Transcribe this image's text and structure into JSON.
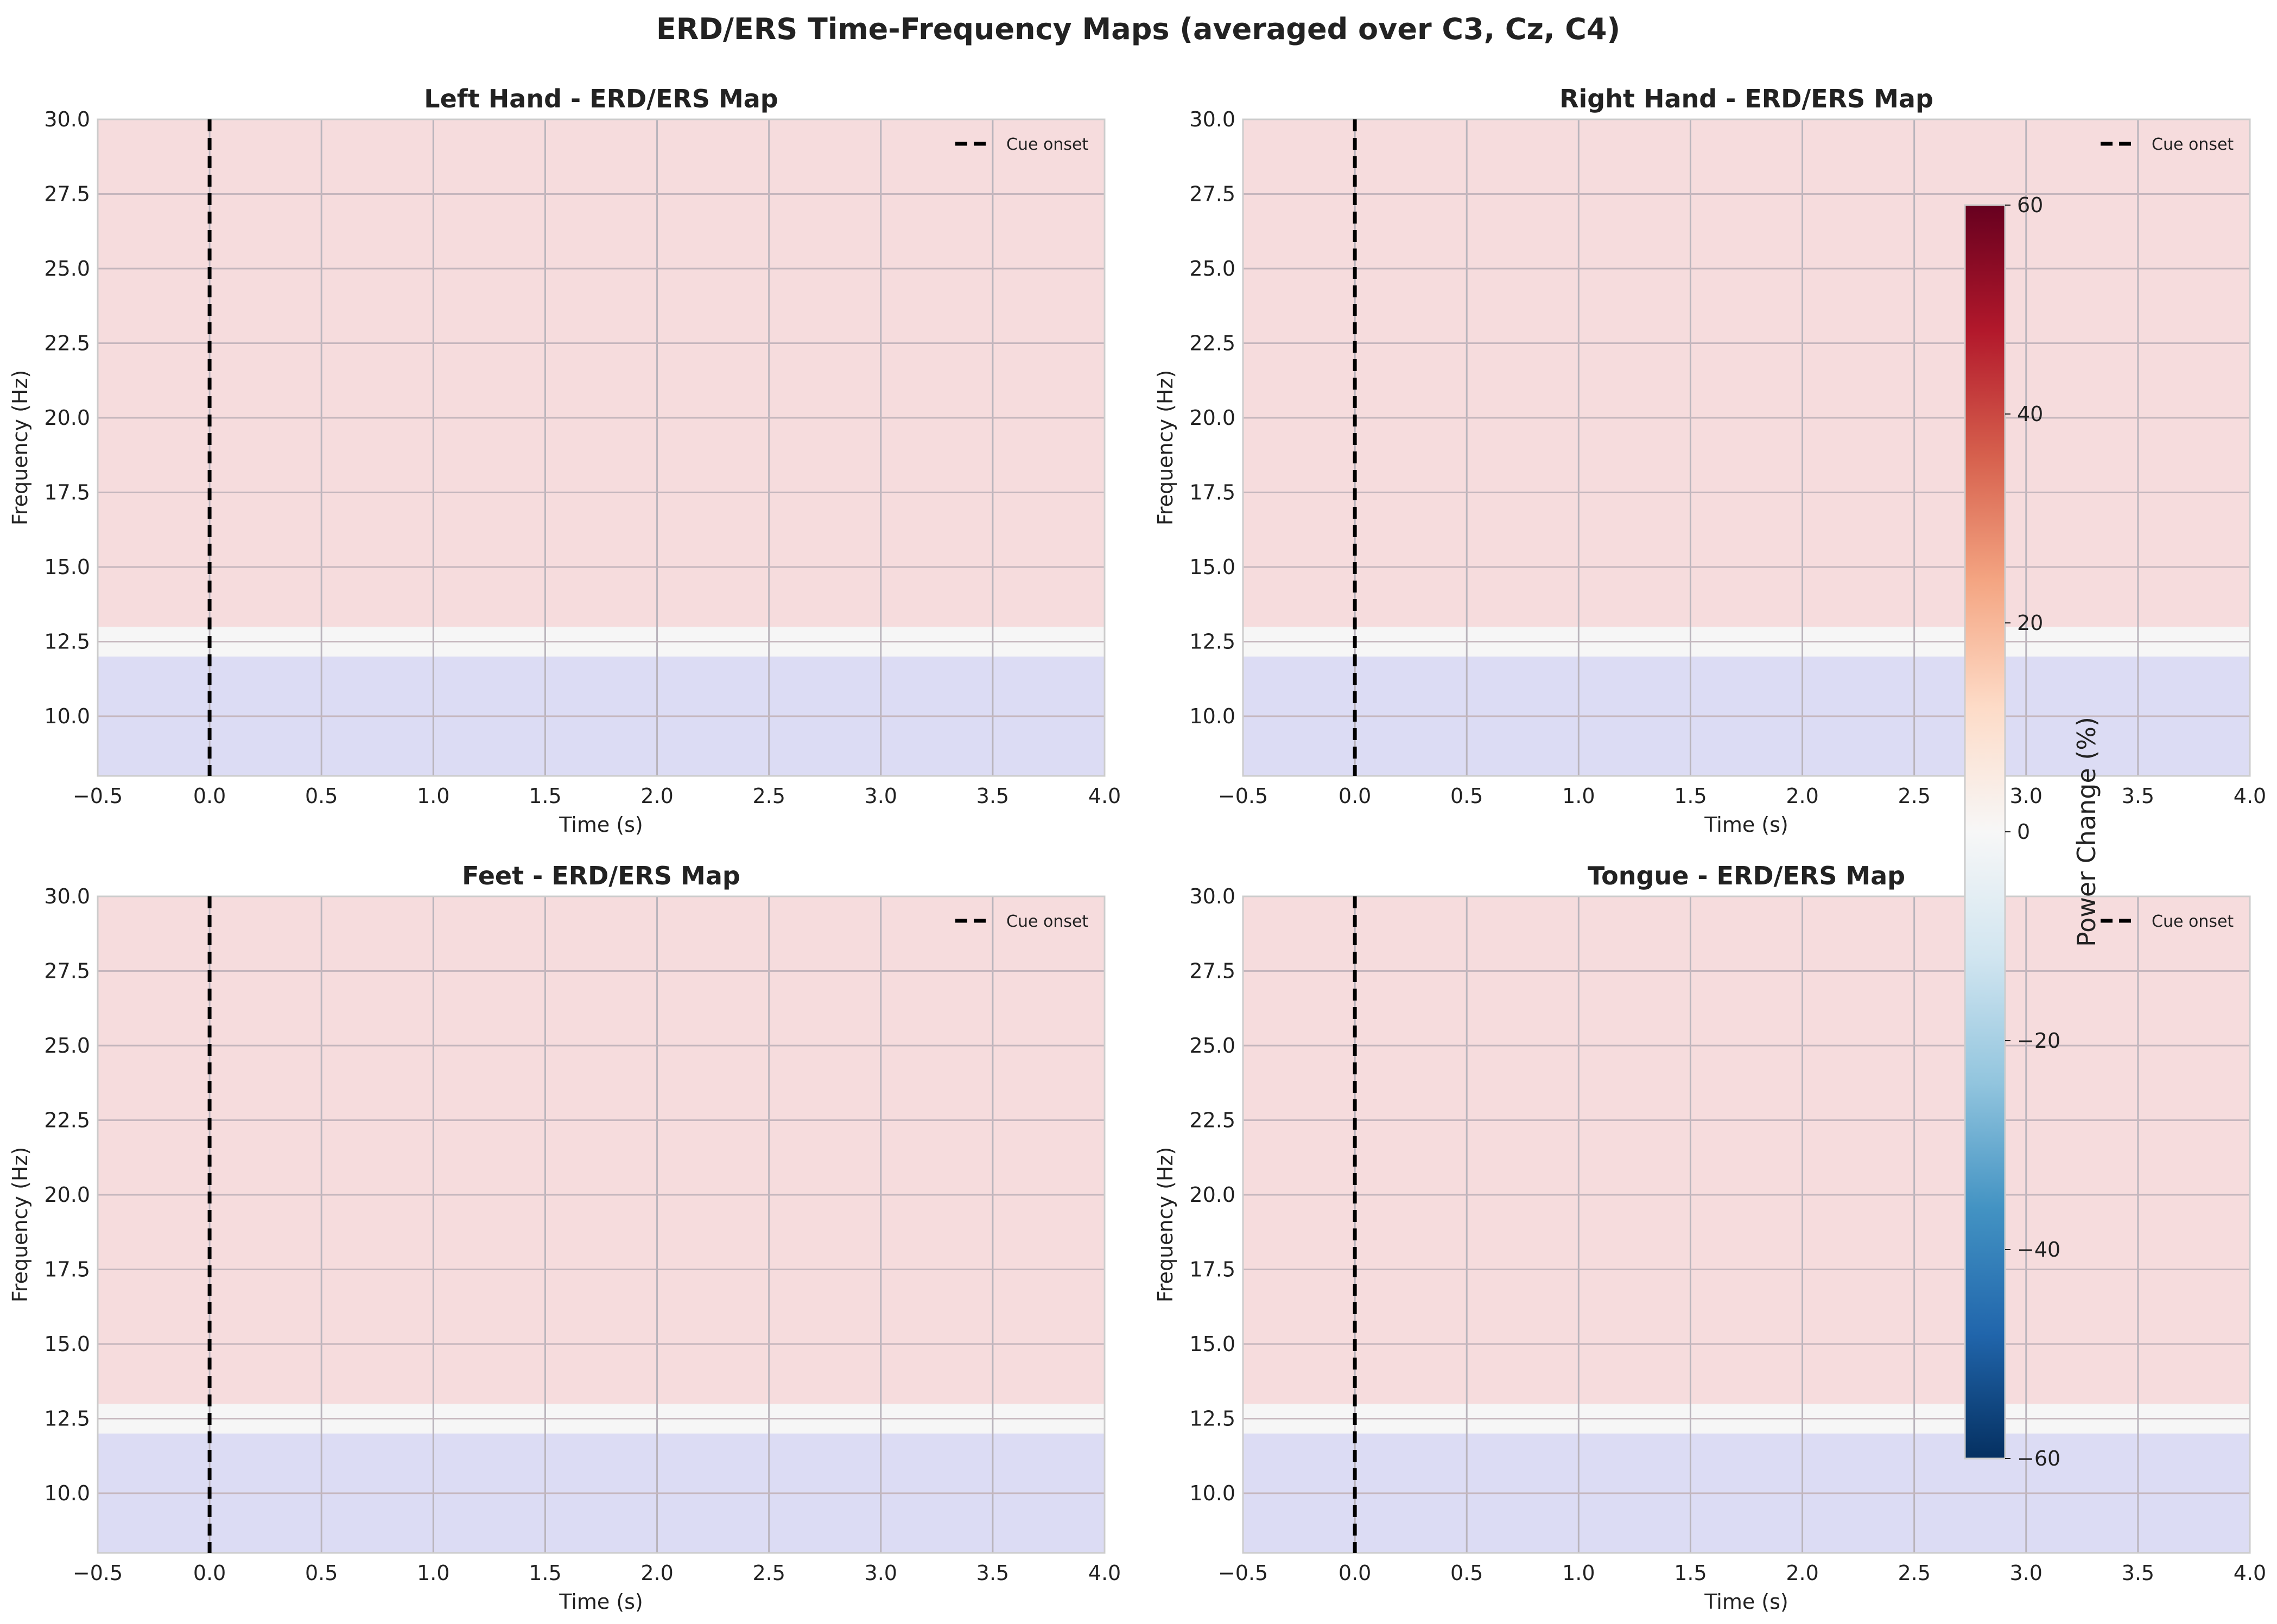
{
  "figure": {
    "title": "ERD/ERS Time-Frequency Maps (averaged over C3, Cz, C4)"
  },
  "colorbar": {
    "label": "Power Change (%)",
    "range": [
      -60,
      60
    ],
    "ticks": [
      60,
      40,
      20,
      0,
      -20,
      -40,
      -60
    ],
    "tick_labels": [
      "60",
      "40",
      "20",
      "0",
      "−20",
      "−40",
      "−60"
    ],
    "colormap": "RdBu_r",
    "stops": [
      "#67001f",
      "#b2182b",
      "#d6604d",
      "#f4a582",
      "#fddbc7",
      "#f7f7f7",
      "#d1e5f0",
      "#92c5de",
      "#4393c3",
      "#2166ac",
      "#053061"
    ]
  },
  "chart_data": [
    {
      "type": "heatmap",
      "title": "Left Hand - ERD/ERS Map",
      "xlabel": "Time (s)",
      "ylabel": "Frequency (Hz)",
      "xlim": [
        -0.5,
        4.0
      ],
      "ylim": [
        8,
        30
      ],
      "xticks": [
        -0.5,
        0.0,
        0.5,
        1.0,
        1.5,
        2.0,
        2.5,
        3.0,
        3.5,
        4.0
      ],
      "xtick_labels": [
        "−0.5",
        "0.0",
        "0.5",
        "1.0",
        "1.5",
        "2.0",
        "2.5",
        "3.0",
        "3.5",
        "4.0"
      ],
      "yticks": [
        10.0,
        12.5,
        15.0,
        17.5,
        20.0,
        22.5,
        25.0,
        27.5,
        30.0
      ],
      "ytick_labels": [
        "10.0",
        "12.5",
        "15.0",
        "17.5",
        "20.0",
        "22.5",
        "25.0",
        "27.5",
        "30.0"
      ],
      "bands": [
        {
          "freq_range": [
            8,
            12
          ],
          "color": "#dcdcf4"
        },
        {
          "freq_range": [
            12,
            13
          ],
          "color": "#f6f6f6"
        },
        {
          "freq_range": [
            13,
            30
          ],
          "color": "#f6dcdd"
        }
      ],
      "vline": {
        "x": 0.0,
        "label": "Cue onset"
      },
      "legend_location": "upper right",
      "grid": true
    },
    {
      "type": "heatmap",
      "title": "Right Hand - ERD/ERS Map",
      "xlabel": "Time (s)",
      "ylabel": "Frequency (Hz)",
      "xlim": [
        -0.5,
        4.0
      ],
      "ylim": [
        8,
        30
      ],
      "xticks": [
        -0.5,
        0.0,
        0.5,
        1.0,
        1.5,
        2.0,
        2.5,
        3.0,
        3.5,
        4.0
      ],
      "xtick_labels": [
        "−0.5",
        "0.0",
        "0.5",
        "1.0",
        "1.5",
        "2.0",
        "2.5",
        "3.0",
        "3.5",
        "4.0"
      ],
      "yticks": [
        10.0,
        12.5,
        15.0,
        17.5,
        20.0,
        22.5,
        25.0,
        27.5,
        30.0
      ],
      "ytick_labels": [
        "10.0",
        "12.5",
        "15.0",
        "17.5",
        "20.0",
        "22.5",
        "25.0",
        "27.5",
        "30.0"
      ],
      "bands": [
        {
          "freq_range": [
            8,
            12
          ],
          "color": "#dcdcf4"
        },
        {
          "freq_range": [
            12,
            13
          ],
          "color": "#f6f6f6"
        },
        {
          "freq_range": [
            13,
            30
          ],
          "color": "#f6dcdd"
        }
      ],
      "vline": {
        "x": 0.0,
        "label": "Cue onset"
      },
      "legend_location": "upper right",
      "grid": true
    },
    {
      "type": "heatmap",
      "title": "Feet - ERD/ERS Map",
      "xlabel": "Time (s)",
      "ylabel": "Frequency (Hz)",
      "xlim": [
        -0.5,
        4.0
      ],
      "ylim": [
        8,
        30
      ],
      "xticks": [
        -0.5,
        0.0,
        0.5,
        1.0,
        1.5,
        2.0,
        2.5,
        3.0,
        3.5,
        4.0
      ],
      "xtick_labels": [
        "−0.5",
        "0.0",
        "0.5",
        "1.0",
        "1.5",
        "2.0",
        "2.5",
        "3.0",
        "3.5",
        "4.0"
      ],
      "yticks": [
        10.0,
        12.5,
        15.0,
        17.5,
        20.0,
        22.5,
        25.0,
        27.5,
        30.0
      ],
      "ytick_labels": [
        "10.0",
        "12.5",
        "15.0",
        "17.5",
        "20.0",
        "22.5",
        "25.0",
        "27.5",
        "30.0"
      ],
      "bands": [
        {
          "freq_range": [
            8,
            12
          ],
          "color": "#dcdcf4"
        },
        {
          "freq_range": [
            12,
            13
          ],
          "color": "#f6f6f6"
        },
        {
          "freq_range": [
            13,
            30
          ],
          "color": "#f6dcdd"
        }
      ],
      "vline": {
        "x": 0.0,
        "label": "Cue onset"
      },
      "legend_location": "upper right",
      "grid": true
    },
    {
      "type": "heatmap",
      "title": "Tongue - ERD/ERS Map",
      "xlabel": "Time (s)",
      "ylabel": "Frequency (Hz)",
      "xlim": [
        -0.5,
        4.0
      ],
      "ylim": [
        8,
        30
      ],
      "xticks": [
        -0.5,
        0.0,
        0.5,
        1.0,
        1.5,
        2.0,
        2.5,
        3.0,
        3.5,
        4.0
      ],
      "xtick_labels": [
        "−0.5",
        "0.0",
        "0.5",
        "1.0",
        "1.5",
        "2.0",
        "2.5",
        "3.0",
        "3.5",
        "4.0"
      ],
      "yticks": [
        10.0,
        12.5,
        15.0,
        17.5,
        20.0,
        22.5,
        25.0,
        27.5,
        30.0
      ],
      "ytick_labels": [
        "10.0",
        "12.5",
        "15.0",
        "17.5",
        "20.0",
        "22.5",
        "25.0",
        "27.5",
        "30.0"
      ],
      "bands": [
        {
          "freq_range": [
            8,
            12
          ],
          "color": "#dcdcf4"
        },
        {
          "freq_range": [
            12,
            13
          ],
          "color": "#f6f6f6"
        },
        {
          "freq_range": [
            13,
            30
          ],
          "color": "#f6dcdd"
        }
      ],
      "vline": {
        "x": 0.0,
        "label": "Cue onset"
      },
      "legend_location": "upper right",
      "grid": true
    }
  ]
}
